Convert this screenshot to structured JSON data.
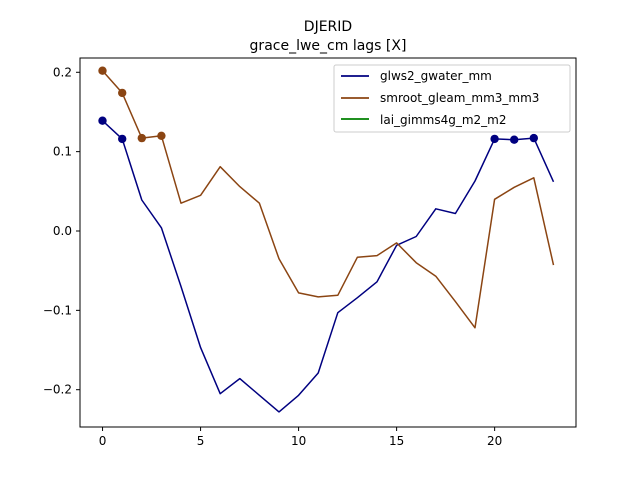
{
  "chart_data": {
    "type": "line",
    "title": "DJERID",
    "subtitle": "grace_lwe_cm lags [X]",
    "xlabel": "",
    "ylabel": "",
    "xlim": [
      -1.15,
      24.15
    ],
    "ylim": [
      -0.247,
      0.218
    ],
    "x_ticks": [
      0,
      5,
      10,
      15,
      20
    ],
    "y_ticks": [
      -0.2,
      -0.1,
      0.0,
      0.1,
      0.2
    ],
    "y_tick_labels": [
      "−0.2",
      "−0.1",
      "0.0",
      "0.1",
      "0.2"
    ],
    "grid": false,
    "legend_position": "top-right",
    "series": [
      {
        "name": "glws2_gwater_mm",
        "color": "#000080",
        "x": [
          0,
          1,
          2,
          3,
          4,
          5,
          6,
          7,
          8,
          9,
          10,
          11,
          12,
          13,
          14,
          15,
          16,
          17,
          18,
          19,
          20,
          21,
          22,
          23
        ],
        "values": [
          0.139,
          0.116,
          0.039,
          0.004,
          -0.07,
          -0.147,
          -0.205,
          -0.186,
          -0.207,
          -0.228,
          -0.207,
          -0.179,
          -0.103,
          -0.084,
          -0.064,
          -0.018,
          -0.007,
          0.028,
          0.022,
          0.063,
          0.116,
          0.115,
          0.117,
          0.062
        ],
        "marker_x": [
          0,
          1,
          20,
          21,
          22
        ],
        "marker_values": [
          0.139,
          0.116,
          0.116,
          0.115,
          0.117
        ]
      },
      {
        "name": "smroot_gleam_mm3_mm3",
        "color": "#8B4513",
        "x": [
          0,
          1,
          2,
          3,
          4,
          5,
          6,
          7,
          8,
          9,
          10,
          11,
          12,
          13,
          14,
          15,
          16,
          17,
          18,
          19,
          20,
          21,
          22,
          23
        ],
        "values": [
          0.202,
          0.174,
          0.117,
          0.12,
          0.035,
          0.045,
          0.081,
          0.056,
          0.035,
          -0.035,
          -0.078,
          -0.083,
          -0.081,
          -0.033,
          -0.031,
          -0.015,
          -0.04,
          -0.057,
          -0.089,
          -0.122,
          0.04,
          0.055,
          0.067,
          -0.043
        ],
        "marker_x": [
          0,
          1,
          2,
          3
        ],
        "marker_values": [
          0.202,
          0.174,
          0.117,
          0.12
        ]
      },
      {
        "name": "lai_gimms4g_m2_m2",
        "color": "#008000",
        "x": [],
        "values": [],
        "marker_x": [],
        "marker_values": []
      }
    ]
  }
}
